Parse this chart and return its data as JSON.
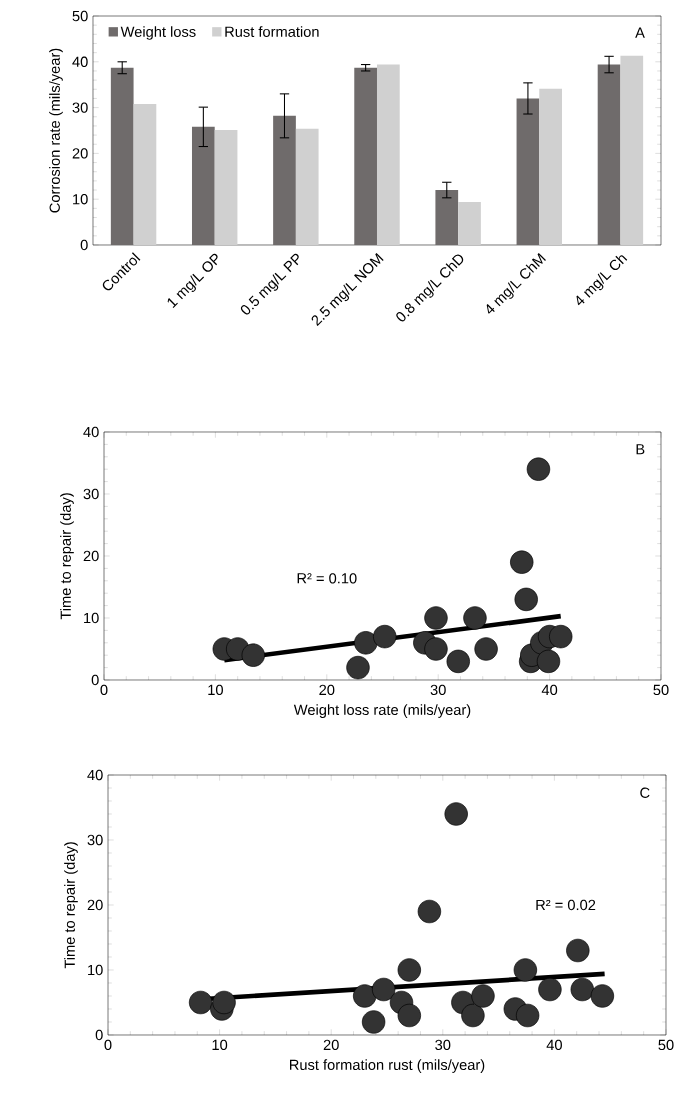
{
  "chart_data": [
    {
      "type": "bar",
      "ylabel": "Corrosion rate (mils/year)",
      "categories": [
        "Control",
        "1 mg/L OP",
        "0.5 mg/L PP",
        "2.5 mg/L NOM",
        "0.8 mg/L ChD",
        "4 mg/L ChM",
        "4 mg/L Ch"
      ],
      "series": [
        {
          "name": "Weight loss",
          "color": "#6f6b6b",
          "values": [
            38.7,
            25.8,
            28.2,
            38.7,
            12.0,
            32.0,
            39.4
          ],
          "errors": [
            1.3,
            4.3,
            4.8,
            0.7,
            1.7,
            3.4,
            1.8
          ]
        },
        {
          "name": "Rust formation",
          "color": "#d0d0d0",
          "values": [
            30.8,
            25.1,
            25.4,
            39.4,
            9.4,
            34.1,
            41.3
          ]
        }
      ],
      "ylim": [
        0,
        50
      ],
      "yticks": [
        0,
        10,
        20,
        30,
        40,
        50
      ],
      "legend": "top left",
      "annotations": [
        "A"
      ]
    },
    {
      "type": "scatter",
      "xlabel": "Weight  loss rate (mils/year)",
      "ylabel": "Time to repair (day)",
      "series": [
        {
          "type": "scatter",
          "color": "#333333",
          "marker": "circle",
          "x": [
            10.8,
            12.0,
            13.4,
            22.8,
            23.5,
            25.2,
            28.8,
            29.8,
            29.8,
            31.8,
            33.3,
            34.3,
            37.5,
            37.9,
            38.3,
            38.4,
            39.0,
            39.3,
            40.0,
            41.0,
            39.9
          ],
          "values": [
            5,
            5,
            4,
            2,
            6,
            7,
            6,
            10,
            5,
            3,
            10,
            5,
            19,
            13,
            3,
            4,
            34,
            6,
            7,
            7,
            3
          ]
        },
        {
          "type": "line",
          "color": "#000000",
          "marker": "none",
          "x": [
            10.8,
            41.0
          ],
          "values": [
            3.2,
            10.3
          ]
        }
      ],
      "xlim": [
        0,
        50
      ],
      "ylim": [
        0,
        40
      ],
      "xticks": [
        0,
        10,
        20,
        30,
        40,
        50
      ],
      "yticks": [
        0,
        10,
        20,
        30,
        40
      ],
      "annotations": [
        "B",
        "R² = 0.10"
      ]
    },
    {
      "type": "scatter",
      "xlabel": "Rust formation rust (mils/year)",
      "ylabel": "Time to repair (day)",
      "series": [
        {
          "type": "scatter",
          "color": "#333333",
          "marker": "circle",
          "x": [
            8.3,
            10.2,
            10.4,
            23.0,
            23.8,
            24.7,
            26.3,
            27.0,
            27.0,
            28.8,
            31.2,
            31.8,
            32.7,
            33.6,
            36.5,
            37.4,
            37.6,
            39.6,
            42.1,
            42.5,
            44.3
          ],
          "values": [
            5,
            4,
            5,
            6,
            2,
            7,
            5,
            10,
            3,
            19,
            34,
            5,
            3,
            6,
            4,
            10,
            3,
            7,
            13,
            7,
            6
          ]
        },
        {
          "type": "line",
          "color": "#000000",
          "marker": "none",
          "x": [
            8.3,
            44.5
          ],
          "values": [
            5.5,
            9.4
          ]
        }
      ],
      "xlim": [
        0,
        50
      ],
      "ylim": [
        0,
        40
      ],
      "xticks": [
        0,
        10,
        20,
        30,
        40,
        50
      ],
      "yticks": [
        0,
        10,
        20,
        30,
        40
      ],
      "annotations": [
        "C",
        "R² = 0.02"
      ]
    }
  ]
}
